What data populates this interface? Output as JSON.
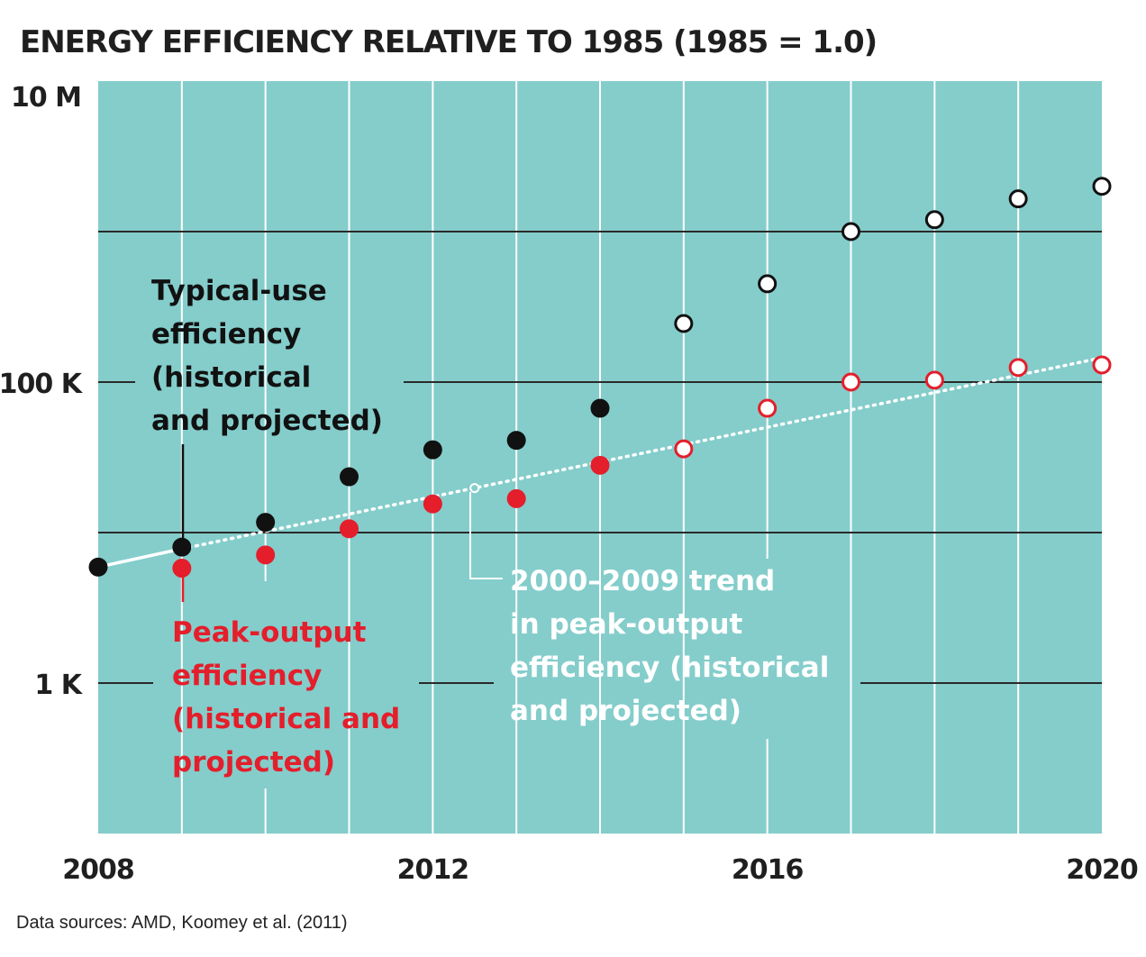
{
  "chart_data": {
    "type": "scatter",
    "title": "ENERGY EFFICIENCY RELATIVE TO 1985 (1985 = 1.0)",
    "xlabel": "",
    "ylabel": "",
    "xlim": [
      2008,
      2020
    ],
    "ylim_log10": [
      2,
      7
    ],
    "yscale": "log",
    "x_ticks": [
      {
        "value": 2008,
        "label": "2008"
      },
      {
        "value": 2012,
        "label": "2012"
      },
      {
        "value": 2016,
        "label": "2016"
      },
      {
        "value": 2020,
        "label": "2020"
      }
    ],
    "y_ticks": [
      {
        "value": 1000,
        "label": "1 K"
      },
      {
        "value": 100000,
        "label": "100 K"
      },
      {
        "value": 10000000,
        "label": "10 M"
      }
    ],
    "series": [
      {
        "name": "Typical-use efficiency (historical and projected)",
        "color": "#111111",
        "points": [
          {
            "x": 2008,
            "y": 5900,
            "projected": false
          },
          {
            "x": 2009,
            "y": 8000,
            "projected": false
          },
          {
            "x": 2010,
            "y": 11700,
            "projected": false
          },
          {
            "x": 2011,
            "y": 23500,
            "projected": false
          },
          {
            "x": 2012,
            "y": 35500,
            "projected": false
          },
          {
            "x": 2013,
            "y": 41000,
            "projected": false
          },
          {
            "x": 2014,
            "y": 67000,
            "projected": false
          },
          {
            "x": 2015,
            "y": 245000,
            "projected": true
          },
          {
            "x": 2016,
            "y": 450000,
            "projected": true
          },
          {
            "x": 2017,
            "y": 1000000,
            "projected": true
          },
          {
            "x": 2018,
            "y": 1200000,
            "projected": true
          },
          {
            "x": 2019,
            "y": 1650000,
            "projected": true
          },
          {
            "x": 2020,
            "y": 2000000,
            "projected": true
          }
        ]
      },
      {
        "name": "Peak-output efficiency (historical and projected)",
        "color": "#e41e2b",
        "points": [
          {
            "x": 2009,
            "y": 5800,
            "projected": false
          },
          {
            "x": 2010,
            "y": 7100,
            "projected": false
          },
          {
            "x": 2011,
            "y": 10600,
            "projected": false
          },
          {
            "x": 2012,
            "y": 15500,
            "projected": false
          },
          {
            "x": 2013,
            "y": 16800,
            "projected": false
          },
          {
            "x": 2014,
            "y": 28000,
            "projected": false
          },
          {
            "x": 2015,
            "y": 36000,
            "projected": true
          },
          {
            "x": 2016,
            "y": 67000,
            "projected": true
          },
          {
            "x": 2017,
            "y": 100000,
            "projected": true
          },
          {
            "x": 2018,
            "y": 103000,
            "projected": true
          },
          {
            "x": 2019,
            "y": 125000,
            "projected": true
          },
          {
            "x": 2020,
            "y": 130000,
            "projected": true
          }
        ]
      }
    ],
    "trend": {
      "name": "2000–2009 trend in peak-output efficiency (historical and projected)",
      "x": [
        2008,
        2009,
        2020
      ],
      "y": [
        5900,
        7800,
        145000
      ],
      "historical_until": 2009,
      "marker_x": 2012.5,
      "color": "#ffffff"
    },
    "annotations": {
      "typical": [
        "Typical-use",
        "efficiency",
        "(historical",
        "and projected)"
      ],
      "peak": [
        "Peak-output",
        "efficiency",
        "(historical and",
        "projected)"
      ],
      "trend": [
        "2000–2009 trend",
        "in peak-output",
        "efficiency (historical",
        "and projected)"
      ]
    }
  },
  "colors": {
    "plot_background": "#84cdcb",
    "grid_light": "#ffffff",
    "grid_dark": "#2a2a2a",
    "typical": "#111111",
    "peak": "#e41e2b",
    "trend": "#ffffff"
  },
  "footer": {
    "source": "Data sources: AMD, Koomey et al. (2011)"
  }
}
